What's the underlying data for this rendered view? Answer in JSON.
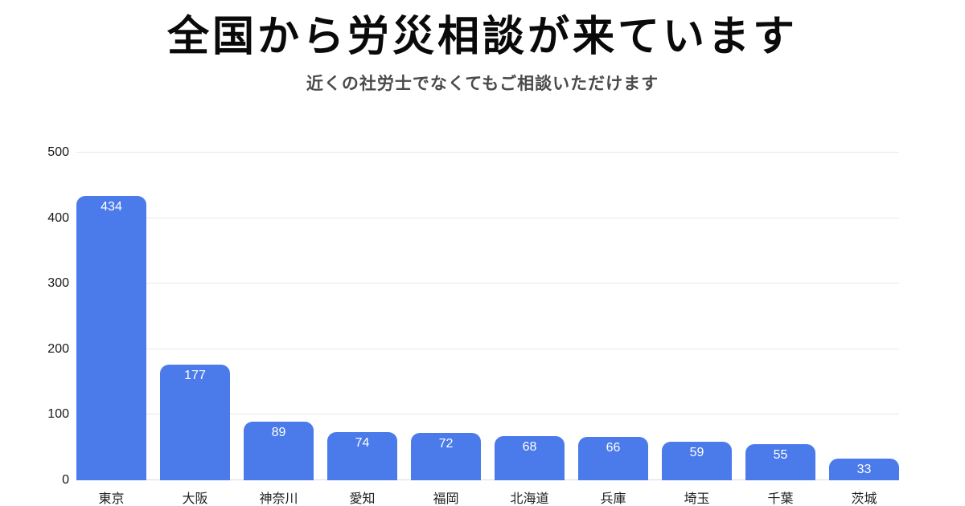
{
  "page": {
    "background": "#ffffff"
  },
  "header": {
    "title": "全国から労災相談が来ています",
    "subtitle": "近くの社労士でなくてもご相談いただけます"
  },
  "chart_data": {
    "type": "bar",
    "title": "全国から労災相談が来ています",
    "subtitle": "近くの社労士でなくてもご相談いただけます",
    "categories": [
      "東京",
      "大阪",
      "神奈川",
      "愛知",
      "福岡",
      "北海道",
      "兵庫",
      "埼玉",
      "千葉",
      "茨城"
    ],
    "values": [
      434,
      177,
      89,
      74,
      72,
      68,
      66,
      59,
      55,
      33
    ],
    "xlabel": "",
    "ylabel": "",
    "ylim": [
      0,
      500
    ],
    "yticks": [
      0,
      100,
      200,
      300,
      400,
      500
    ],
    "grid": true,
    "legend": "none",
    "bar_color": "#4b7bea",
    "value_label_color": "#ffffff",
    "gridline_color": "#e8e8e8",
    "tick_label_color": "#161616"
  }
}
